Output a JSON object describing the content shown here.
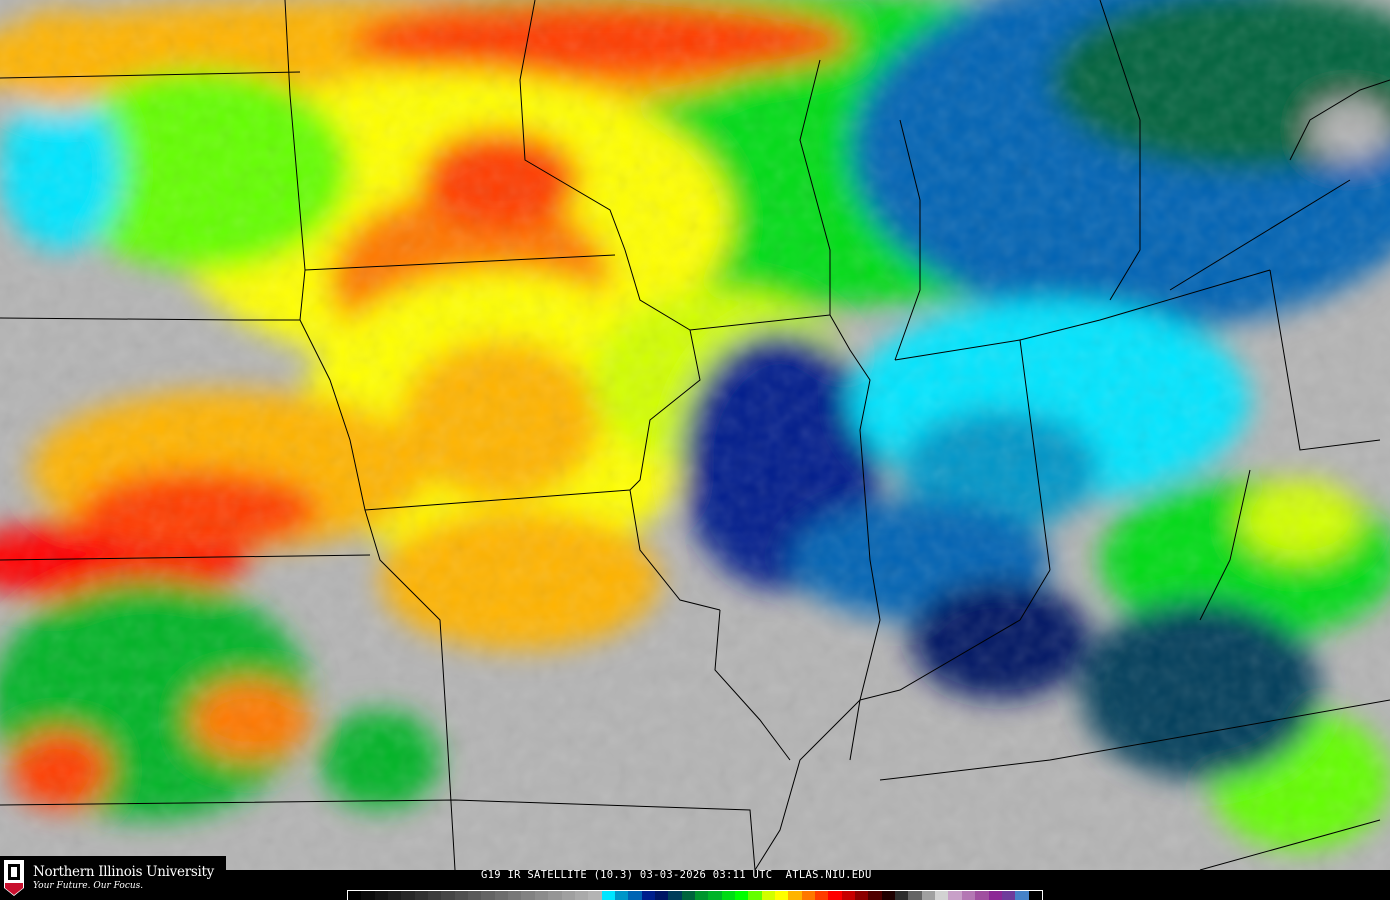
{
  "title": "G19 IR SATELLITE (10.3) 03-03-2026 03:11 UTC  ATLAS.NIU.EDU",
  "logo": {
    "name": "Northern Illinois University",
    "tagline": "Your Future. Our Focus.",
    "seal_text": "NIU"
  },
  "colors": {
    "clear_ground": "#b4b4b4",
    "border_lines": "#000000",
    "brand_red": "#c8102e"
  },
  "colorbar": [
    "#000000",
    "#0a0a0a",
    "#141414",
    "#1e1e1e",
    "#282828",
    "#323232",
    "#3c3c3c",
    "#464646",
    "#505050",
    "#5a5a5a",
    "#646464",
    "#6e6e6e",
    "#787878",
    "#828282",
    "#8c8c8c",
    "#969696",
    "#a0a0a0",
    "#aaaaaa",
    "#b4b4b4",
    "#00e5ff",
    "#0096c8",
    "#0064b4",
    "#001e8c",
    "#001464",
    "#003c5a",
    "#00643c",
    "#00962d",
    "#00b428",
    "#00dc14",
    "#00ff00",
    "#64ff00",
    "#d2ff00",
    "#ffff00",
    "#ffb400",
    "#ff7800",
    "#ff3c00",
    "#ff0000",
    "#c80000",
    "#8c0000",
    "#500000",
    "#1e0000",
    "#2d2d2d",
    "#646464",
    "#a0a0a0",
    "#d2d2d2",
    "#c8a0c8",
    "#b478b4",
    "#a050a0",
    "#8c2896",
    "#6e3c9b",
    "#4682c8",
    "#000000"
  ]
}
